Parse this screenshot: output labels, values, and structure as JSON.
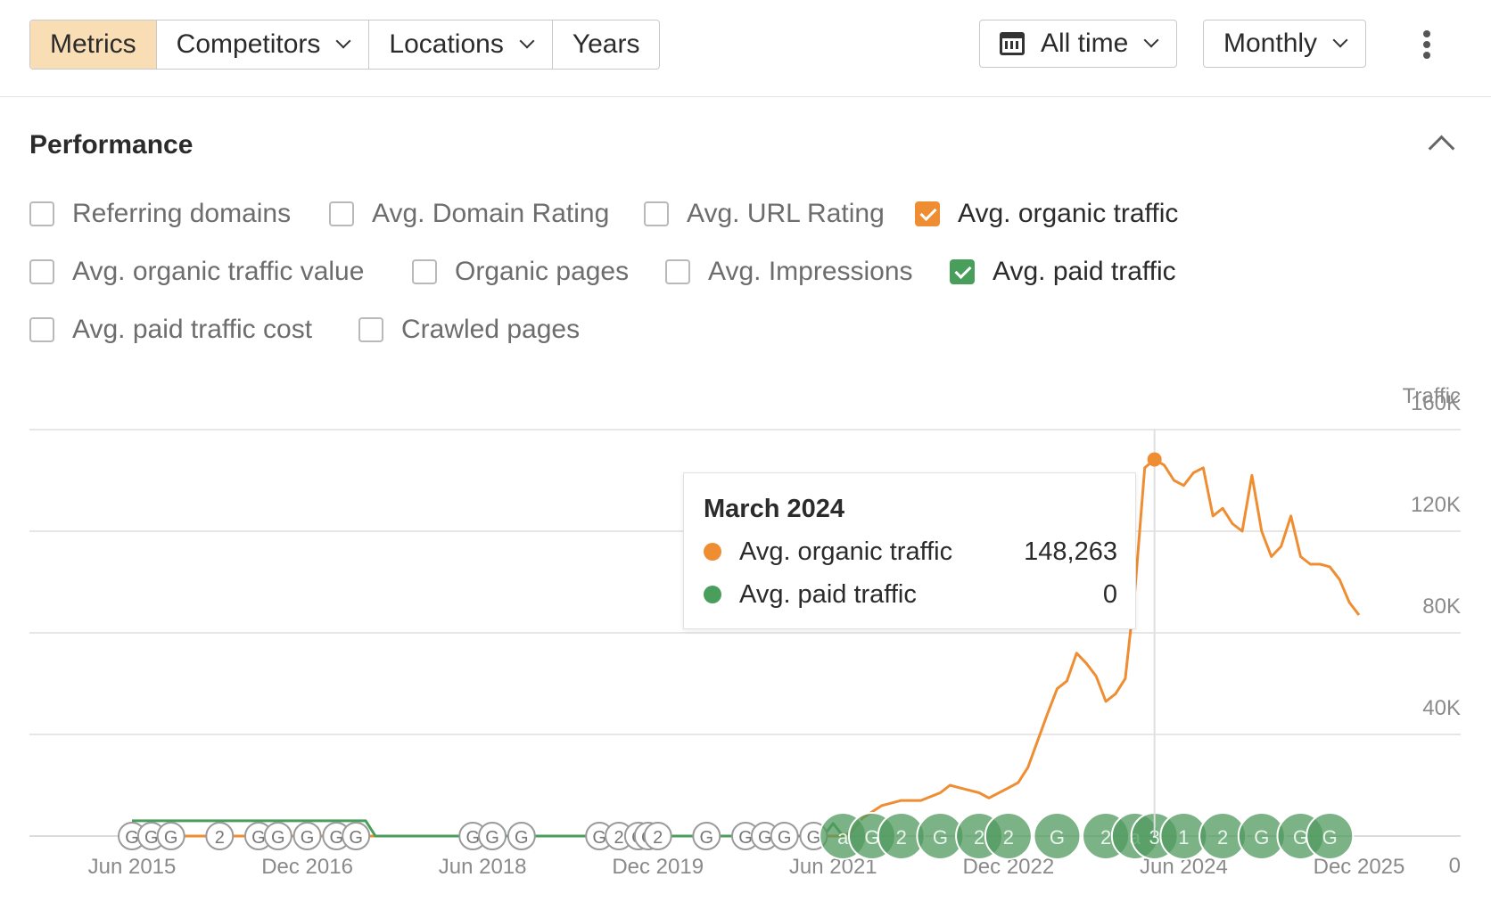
{
  "toolbar": {
    "tabs": [
      "Metrics",
      "Competitors",
      "Locations",
      "Years"
    ],
    "period": "All time",
    "interval": "Monthly"
  },
  "performance": {
    "title": "Performance",
    "checkboxes": [
      {
        "label": "Referring domains",
        "checked": false
      },
      {
        "label": "Avg. Domain Rating",
        "checked": false
      },
      {
        "label": "Avg. URL Rating",
        "checked": false
      },
      {
        "label": "Avg. organic traffic",
        "checked": true
      },
      {
        "label": "Avg. organic traffic value",
        "checked": false
      },
      {
        "label": "Organic pages",
        "checked": false
      },
      {
        "label": "Avg. Impressions",
        "checked": false
      },
      {
        "label": "Avg. paid traffic",
        "checked": true
      },
      {
        "label": "Avg. paid traffic cost",
        "checked": false
      },
      {
        "label": "Crawled pages",
        "checked": false
      }
    ]
  },
  "chart_data": {
    "type": "line",
    "ylabel": "Traffic",
    "yticks": [
      "0",
      "40K",
      "80K",
      "120K",
      "160K"
    ],
    "ylim": [
      0,
      160000
    ],
    "xticks": [
      "Jun 2015",
      "Dec 2016",
      "Jun 2018",
      "Dec 2019",
      "Jun 2021",
      "Dec 2022",
      "Jun 2024",
      "Dec 2025"
    ],
    "xlim": [
      "2015-06",
      "2025-12"
    ],
    "series": [
      {
        "name": "Avg. organic traffic",
        "color": "#ef8d32",
        "points": [
          [
            "2015-06",
            0
          ],
          [
            "2021-07",
            0
          ],
          [
            "2021-08",
            2000
          ],
          [
            "2021-09",
            7000
          ],
          [
            "2021-11",
            12000
          ],
          [
            "2022-01",
            14000
          ],
          [
            "2022-03",
            14000
          ],
          [
            "2022-05",
            17000
          ],
          [
            "2022-06",
            20000
          ],
          [
            "2022-07",
            19000
          ],
          [
            "2022-08",
            18000
          ],
          [
            "2022-09",
            17000
          ],
          [
            "2022-10",
            15000
          ],
          [
            "2022-12",
            19000
          ],
          [
            "2023-01",
            21000
          ],
          [
            "2023-02",
            27000
          ],
          [
            "2023-04",
            48000
          ],
          [
            "2023-05",
            58000
          ],
          [
            "2023-06",
            61000
          ],
          [
            "2023-07",
            72000
          ],
          [
            "2023-08",
            68000
          ],
          [
            "2023-09",
            63000
          ],
          [
            "2023-10",
            53000
          ],
          [
            "2023-11",
            56000
          ],
          [
            "2023-12",
            62000
          ],
          [
            "2024-01",
            97000
          ],
          [
            "2024-02",
            145000
          ],
          [
            "2024-03",
            148263
          ],
          [
            "2024-04",
            146000
          ],
          [
            "2024-05",
            140000
          ],
          [
            "2024-06",
            138000
          ],
          [
            "2024-07",
            143000
          ],
          [
            "2024-08",
            145000
          ],
          [
            "2024-09",
            126000
          ],
          [
            "2024-10",
            129000
          ],
          [
            "2024-11",
            123000
          ],
          [
            "2024-12",
            120000
          ],
          [
            "2025-01",
            142000
          ],
          [
            "2025-02",
            120000
          ],
          [
            "2025-03",
            110000
          ],
          [
            "2025-04",
            114000
          ],
          [
            "2025-05",
            126000
          ],
          [
            "2025-06",
            110000
          ],
          [
            "2025-07",
            107000
          ],
          [
            "2025-08",
            107000
          ],
          [
            "2025-09",
            106000
          ],
          [
            "2025-10",
            101000
          ],
          [
            "2025-11",
            92000
          ],
          [
            "2025-12",
            87000
          ]
        ]
      },
      {
        "name": "Avg. paid traffic",
        "color": "#4a9e5c",
        "points": [
          [
            "2015-06",
            6000
          ],
          [
            "2017-06",
            6000
          ],
          [
            "2017-07",
            0
          ],
          [
            "2021-05",
            0
          ],
          [
            "2021-06",
            5000
          ],
          [
            "2021-07",
            0
          ]
        ]
      }
    ],
    "highlight": {
      "date": "2024-03",
      "title": "March 2024",
      "rows": [
        {
          "label": "Avg. organic traffic",
          "value": "148,263",
          "color": "#ef8d32"
        },
        {
          "label": "Avg. paid traffic",
          "value": "0",
          "color": "#4a9e5c"
        }
      ]
    },
    "annotations": [
      {
        "date": "2015-06",
        "label": "G"
      },
      {
        "date": "2015-08",
        "label": "G"
      },
      {
        "date": "2015-10",
        "label": "G"
      },
      {
        "date": "2016-03",
        "label": "2"
      },
      {
        "date": "2016-07",
        "label": "G"
      },
      {
        "date": "2016-09",
        "label": "G"
      },
      {
        "date": "2016-12",
        "label": "G"
      },
      {
        "date": "2017-03",
        "label": "G"
      },
      {
        "date": "2017-05",
        "label": "G"
      },
      {
        "date": "2018-05",
        "label": "G"
      },
      {
        "date": "2018-07",
        "label": "G"
      },
      {
        "date": "2018-10",
        "label": "G"
      },
      {
        "date": "2019-06",
        "label": "G"
      },
      {
        "date": "2019-08",
        "label": "2"
      },
      {
        "date": "2019-10",
        "label": "G"
      },
      {
        "date": "2019-11",
        "label": "G"
      },
      {
        "date": "2019-12",
        "label": "2"
      },
      {
        "date": "2020-05",
        "label": "G"
      },
      {
        "date": "2020-09",
        "label": "G"
      },
      {
        "date": "2020-11",
        "label": "G"
      },
      {
        "date": "2021-01",
        "label": "G"
      },
      {
        "date": "2021-04",
        "label": "G"
      },
      {
        "date": "2021-07",
        "label": "a"
      },
      {
        "date": "2021-10",
        "label": "G"
      },
      {
        "date": "2022-01",
        "label": "2"
      },
      {
        "date": "2022-05",
        "label": "G"
      },
      {
        "date": "2022-09",
        "label": "2"
      },
      {
        "date": "2022-12",
        "label": "2"
      },
      {
        "date": "2023-05",
        "label": "G"
      },
      {
        "date": "2023-10",
        "label": "2"
      },
      {
        "date": "2024-01",
        "label": "a"
      },
      {
        "date": "2024-03",
        "label": "3"
      },
      {
        "date": "2024-06",
        "label": "1"
      },
      {
        "date": "2024-10",
        "label": "2"
      },
      {
        "date": "2025-02",
        "label": "G"
      },
      {
        "date": "2025-06",
        "label": "G"
      },
      {
        "date": "2025-09",
        "label": "G"
      }
    ]
  }
}
